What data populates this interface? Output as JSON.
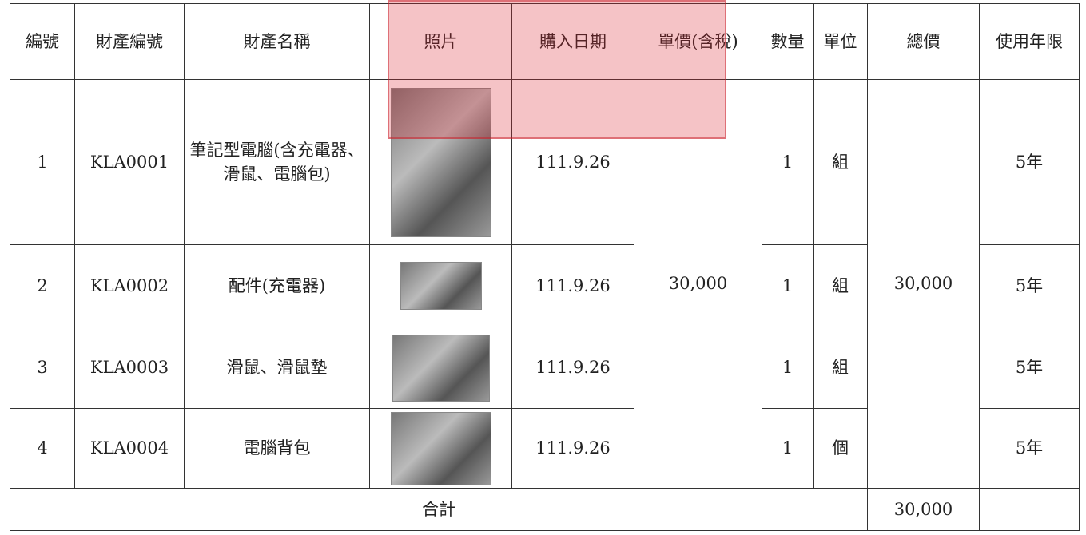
{
  "table": {
    "header": [
      "編號",
      "財產編號",
      "財產名稱",
      "照片",
      "購入日期",
      "單價(含稅)",
      "數量",
      "單位",
      "總價",
      "使用年限"
    ],
    "rows": [
      {
        "no": "1",
        "id": "KLA0001",
        "name": "筆記型電腦(含充電器、滑鼠、電腦包)",
        "date": "111.9.26",
        "qty": "1",
        "unit": "組",
        "life": "5年"
      },
      {
        "no": "2",
        "id": "KLA0002",
        "name": "配件(充電器)",
        "date": "111.9.26",
        "qty": "1",
        "unit": "組",
        "life": "5年"
      },
      {
        "no": "3",
        "id": "KLA0003",
        "name": "滑鼠、滑鼠墊",
        "date": "111.9.26",
        "qty": "1",
        "unit": "組",
        "life": "5年"
      },
      {
        "no": "4",
        "id": "KLA0004",
        "name": "電腦背包",
        "date": "111.9.26",
        "qty": "1",
        "unit": "個",
        "life": "5年"
      }
    ],
    "unit_price": "30,000",
    "total_price": "30,000",
    "sum_label": "合計",
    "sum_total": "30,000"
  }
}
